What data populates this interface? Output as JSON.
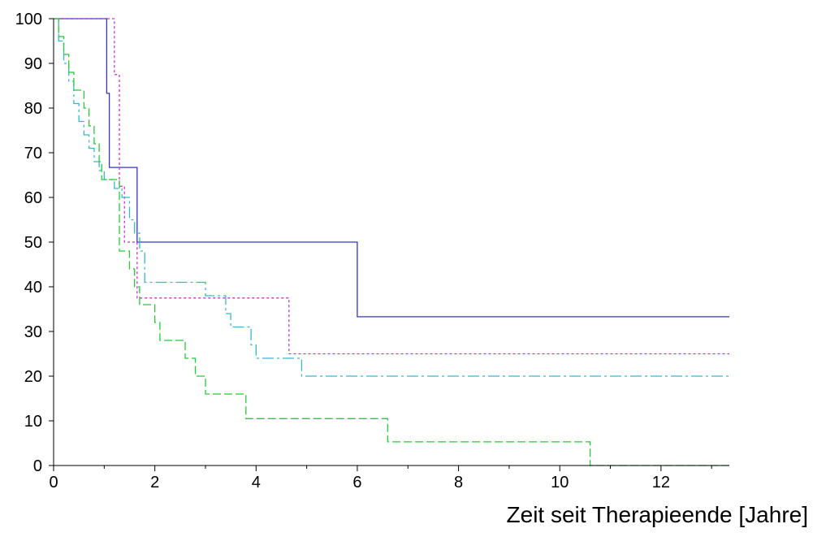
{
  "chart_data": {
    "type": "line",
    "title": "",
    "xlabel": "Zeit seit Therapieende [Jahre]",
    "ylabel": "",
    "xlim": [
      0,
      13.35
    ],
    "ylim": [
      0,
      100
    ],
    "xticks": [
      0,
      2,
      4,
      6,
      8,
      10,
      12
    ],
    "yticks": [
      0,
      10,
      20,
      30,
      40,
      50,
      60,
      70,
      80,
      90,
      100
    ],
    "grid": false,
    "legend": "none",
    "step": true,
    "series": [
      {
        "color": "#3333cc",
        "dash": "",
        "x": [
          0,
          1.05,
          1.1,
          1.65,
          6.0,
          13.35
        ],
        "y": [
          100,
          83.3,
          66.7,
          50,
          33.3,
          33.3
        ]
      },
      {
        "color": "#cc33cc",
        "dash": "3,3",
        "x": [
          0,
          1.2,
          1.3,
          1.4,
          1.5,
          1.65,
          4.65,
          13.35
        ],
        "y": [
          100,
          87.5,
          62.5,
          50,
          50,
          37.5,
          25,
          25
        ]
      },
      {
        "color": "#33bbcc",
        "dash": "14,4,3,4",
        "x": [
          0,
          0.1,
          0.2,
          0.3,
          0.4,
          0.5,
          0.6,
          0.7,
          0.8,
          0.9,
          1.0,
          1.2,
          1.35,
          1.5,
          1.6,
          1.7,
          1.8,
          3.0,
          3.4,
          3.5,
          3.9,
          4.0,
          4.9,
          13.35
        ],
        "y": [
          100,
          95,
          90,
          86,
          81,
          77,
          74,
          71,
          68,
          66,
          64,
          62,
          60,
          55,
          52,
          48,
          41,
          38,
          34,
          31,
          27,
          24,
          20,
          20
        ]
      },
      {
        "color": "#22cc33",
        "dash": "10,4",
        "x": [
          0,
          0.1,
          0.2,
          0.3,
          0.4,
          0.6,
          0.7,
          0.8,
          0.9,
          0.95,
          1.3,
          1.5,
          1.6,
          1.7,
          2.0,
          2.1,
          2.6,
          2.8,
          3.0,
          3.8,
          6.6,
          10.6,
          10.7,
          13.35
        ],
        "y": [
          100,
          96,
          92,
          88,
          84,
          80,
          76,
          72,
          68,
          64,
          48,
          44,
          40,
          36,
          32,
          28,
          24,
          20,
          16,
          10.5,
          5.3,
          0,
          0,
          0
        ]
      }
    ]
  }
}
